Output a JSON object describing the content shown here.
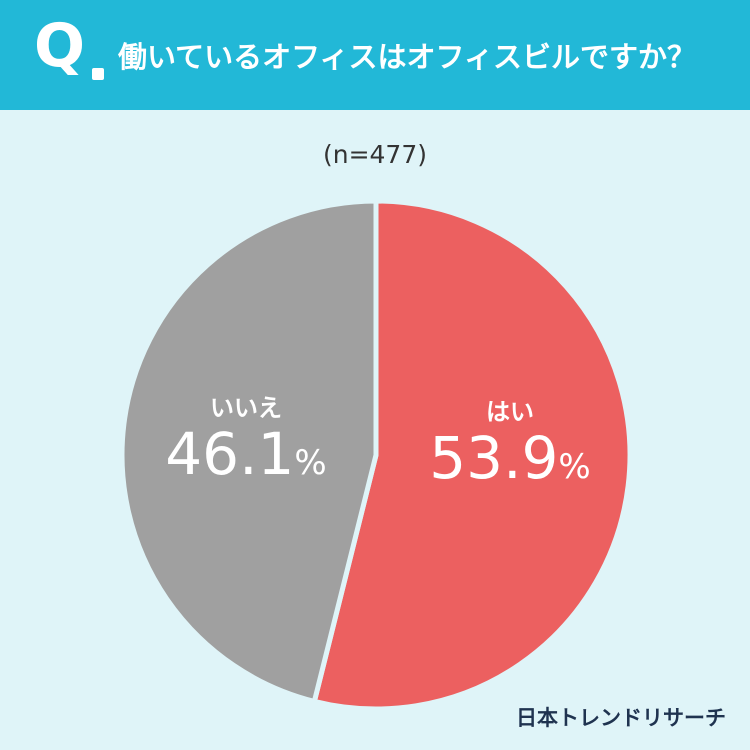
{
  "header": {
    "q_mark": "Q",
    "question": "働いているオフィスはオフィスビルですか？"
  },
  "sample_size": "(n=477)",
  "chart_data": {
    "type": "pie",
    "title": "働いているオフィスはオフィスビルですか？",
    "unit": "%",
    "categories": [
      "はい",
      "いいえ"
    ],
    "values": [
      53.9,
      46.1
    ],
    "start_angle_deg": 0,
    "direction": "clockwise",
    "colors": [
      "#ec6060",
      "#a0a0a0"
    ],
    "legend": "none"
  },
  "labels": {
    "yes": {
      "name": "はい",
      "value": "53.9",
      "unit": "%"
    },
    "no": {
      "name": "いいえ",
      "value": "46.1",
      "unit": "%"
    }
  },
  "brand": "日本トレンドリサーチ"
}
